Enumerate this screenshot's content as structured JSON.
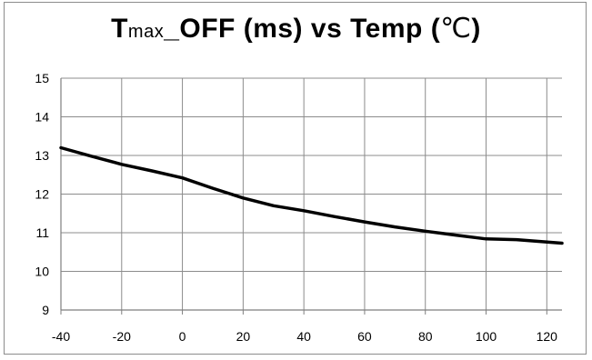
{
  "chart_data": {
    "type": "line",
    "title": {
      "main": "T",
      "subscript": "max",
      "rest": "_OFF (ms) vs Temp (",
      "unit": "℃",
      "close": ")"
    },
    "xlabel": "",
    "ylabel": "",
    "xlim": [
      -40,
      125
    ],
    "ylim": [
      9,
      15
    ],
    "xticks": [
      "-40",
      "-20",
      "0",
      "20",
      "40",
      "60",
      "80",
      "100",
      "120"
    ],
    "yticks": [
      "15",
      "14",
      "13",
      "12",
      "11",
      "10",
      "9"
    ],
    "grid": true,
    "legend": "none",
    "series": [
      {
        "color": "#000000",
        "x": [
          -40,
          -30,
          -20,
          -10,
          0,
          10,
          20,
          30,
          40,
          50,
          60,
          70,
          80,
          90,
          100,
          110,
          125
        ],
        "y": [
          13.2,
          12.98,
          12.77,
          12.6,
          12.42,
          12.15,
          11.9,
          11.7,
          11.57,
          11.42,
          11.28,
          11.15,
          11.04,
          10.94,
          10.84,
          10.82,
          10.73
        ]
      }
    ]
  }
}
